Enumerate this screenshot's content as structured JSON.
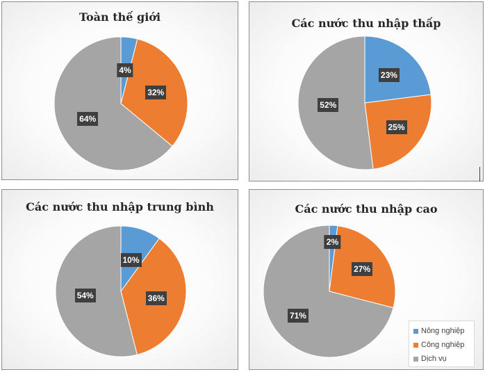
{
  "colors": {
    "nong_nghiep": "#5b9bd5",
    "cong_nghiep": "#ed7d31",
    "dich_vu": "#a5a5a5"
  },
  "legend": {
    "items": [
      {
        "label": "Nông nghiệp",
        "color": "#5b9bd5"
      },
      {
        "label": "Công nghiệp",
        "color": "#ed7d31"
      },
      {
        "label": "Dịch vụ",
        "color": "#a5a5a5"
      }
    ],
    "placement": "bottom-right"
  },
  "chart_data": [
    {
      "type": "pie",
      "title": "Toàn thế giới",
      "categories": [
        "Nông nghiệp",
        "Công nghiệp",
        "Dịch vụ"
      ],
      "values": [
        4,
        32,
        64
      ],
      "labels": [
        "4%",
        "32%",
        "64%"
      ]
    },
    {
      "type": "pie",
      "title": "Các nước thu nhập thấp",
      "categories": [
        "Nông nghiệp",
        "Công nghiệp",
        "Dịch vụ"
      ],
      "values": [
        23,
        25,
        52
      ],
      "labels": [
        "23%",
        "25%",
        "52%"
      ]
    },
    {
      "type": "pie",
      "title": "Các nước thu nhập trung bình",
      "categories": [
        "Nông nghiệp",
        "Công nghiệp",
        "Dịch vụ"
      ],
      "values": [
        10,
        36,
        54
      ],
      "labels": [
        "10%",
        "36%",
        "54%"
      ]
    },
    {
      "type": "pie",
      "title": "Các nước thu nhập cao",
      "categories": [
        "Nông nghiệp",
        "Công nghiệp",
        "Dịch vụ"
      ],
      "values": [
        2,
        27,
        71
      ],
      "labels": [
        "2%",
        "27%",
        "71%"
      ]
    }
  ]
}
